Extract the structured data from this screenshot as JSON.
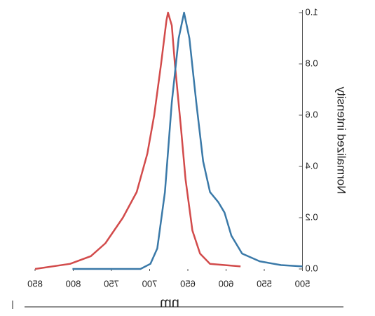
{
  "chart_data": {
    "type": "line",
    "x_label": "nm",
    "y_label": "Normalized intensity",
    "xlim": [
      850,
      500
    ],
    "ylim": [
      0,
      1
    ],
    "xticks": [
      850,
      800,
      750,
      700,
      650,
      600,
      550,
      500
    ],
    "yticks": [
      {
        "value": 0,
        "label": "0.0"
      },
      0.2,
      0.4,
      0.6,
      0.8,
      {
        "value": 1,
        "label": "1.0"
      }
    ],
    "mirrored": true,
    "series": [
      {
        "name": null,
        "color": "#d24b4b",
        "x": [
          850,
          804,
          777,
          758,
          735,
          717,
          703,
          694,
          685,
          678,
          676,
          671,
          667,
          659,
          653,
          644,
          634,
          621,
          581
        ],
        "values": [
          0.0,
          0.02,
          0.05,
          0.1,
          0.2,
          0.3,
          0.45,
          0.6,
          0.8,
          0.97,
          1.0,
          0.95,
          0.8,
          0.55,
          0.35,
          0.15,
          0.06,
          0.02,
          0.01
        ]
      },
      {
        "name": null,
        "color": "#3a79a8",
        "x": [
          801,
          712,
          699,
          690,
          680,
          671,
          662,
          655,
          648,
          639,
          630,
          621,
          610,
          602,
          593,
          579,
          556,
          528,
          500
        ],
        "values": [
          0.0,
          0.0,
          0.02,
          0.08,
          0.3,
          0.65,
          0.9,
          1.0,
          0.9,
          0.65,
          0.42,
          0.3,
          0.26,
          0.22,
          0.13,
          0.06,
          0.03,
          0.015,
          0.01
        ]
      }
    ]
  }
}
